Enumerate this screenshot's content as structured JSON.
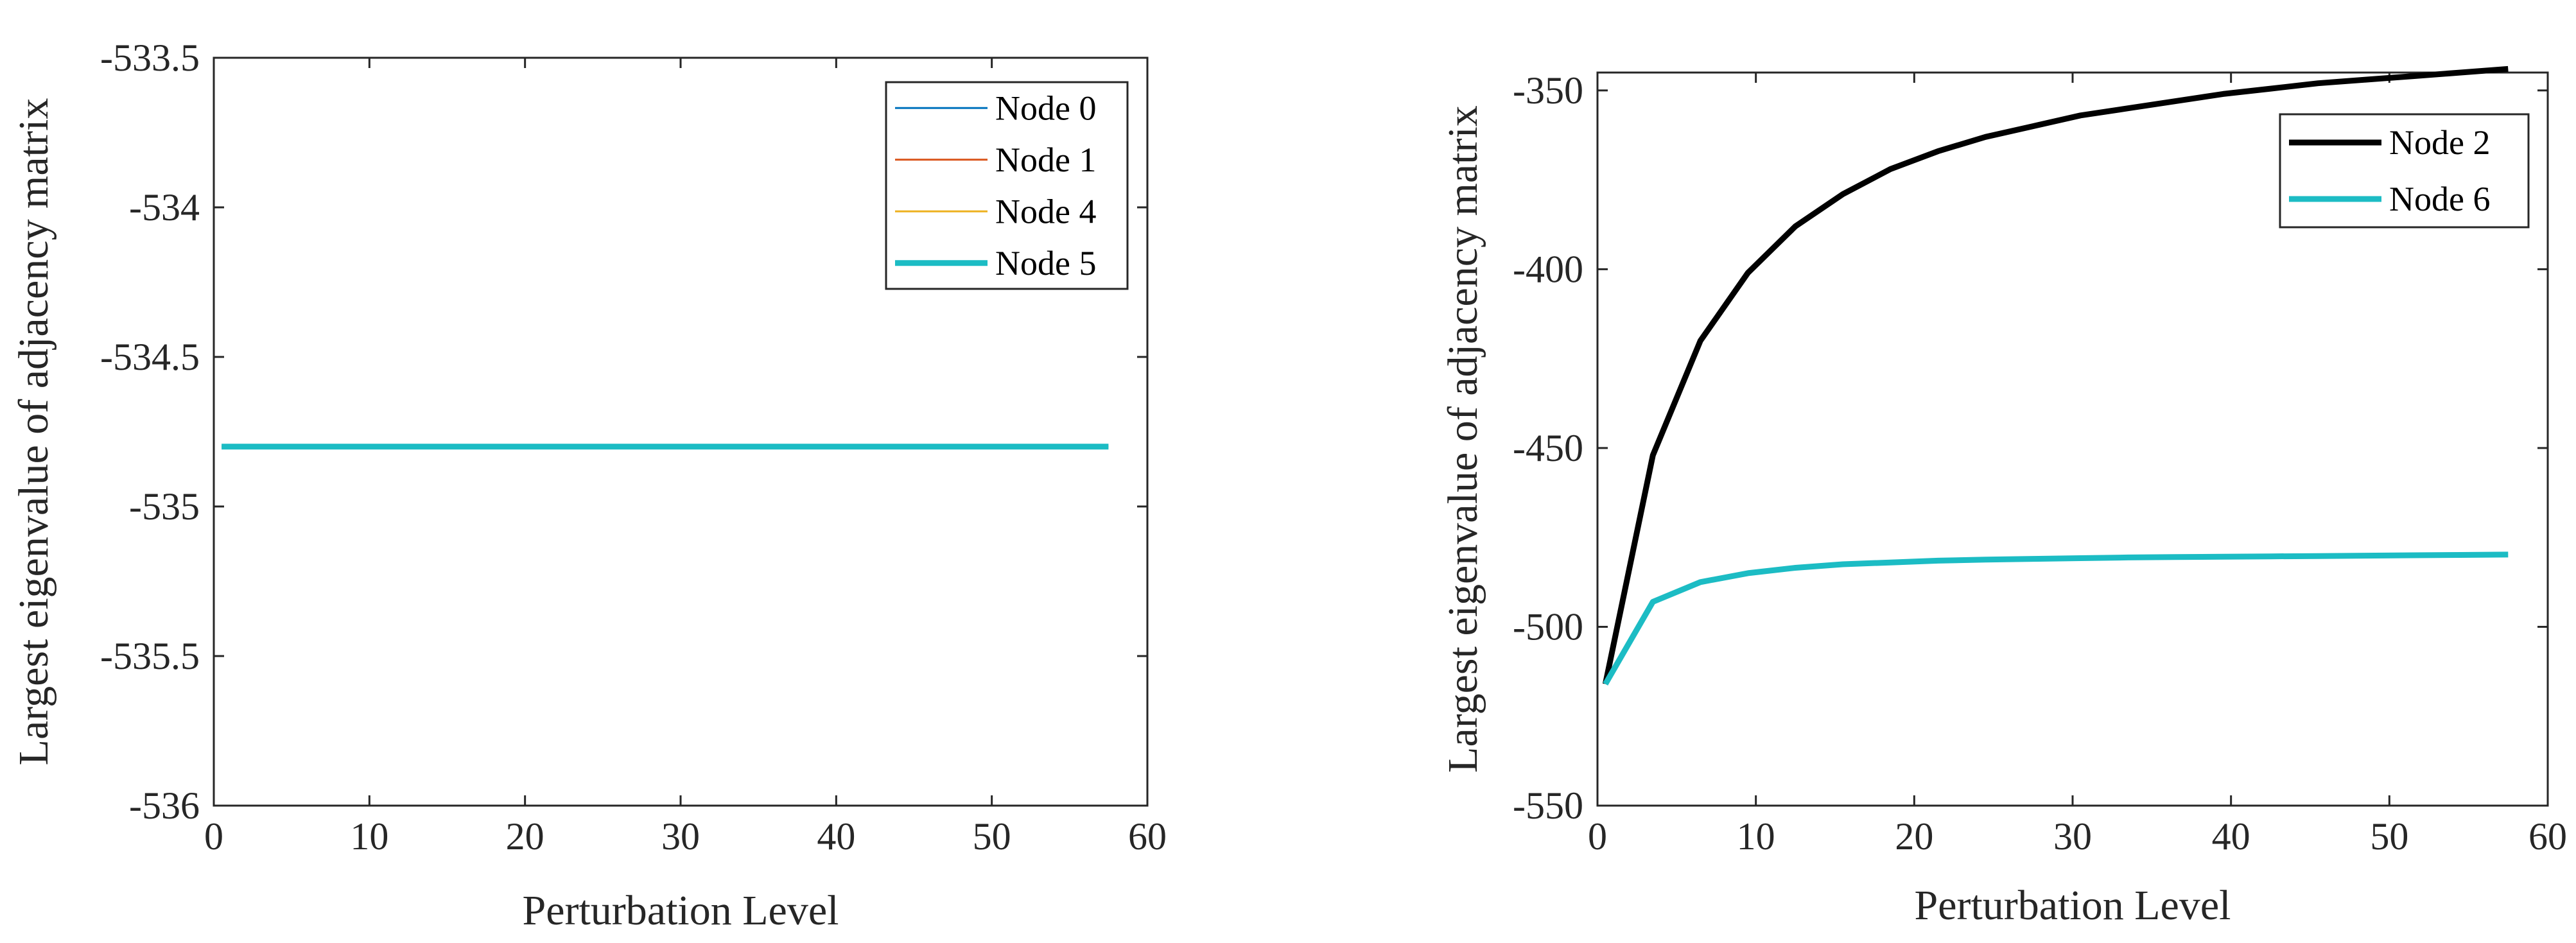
{
  "chart_data": [
    {
      "type": "line",
      "title": "",
      "xlabel": "Perturbation Level",
      "ylabel": "Largest eigenvalue of adjacency matrix",
      "xlim": [
        0,
        60
      ],
      "ylim": [
        -536,
        -533.5
      ],
      "xticks": [
        0,
        10,
        20,
        30,
        40,
        50,
        60
      ],
      "xtick_labels": [
        "0",
        "10",
        "20",
        "30",
        "40",
        "50",
        "60"
      ],
      "yticks": [
        -536,
        -535.5,
        -535,
        -534.5,
        -534,
        -533.5
      ],
      "ytick_labels": [
        "-536",
        "-535.5",
        "-535",
        "-534.5",
        "-534",
        "-533.5"
      ],
      "grid": false,
      "legend_position": "top-right",
      "series": [
        {
          "name": "Node 0",
          "color": "#0072BD",
          "width": "thin",
          "x": [
            0.5,
            57.5
          ],
          "y": [
            -534.8,
            -534.8
          ]
        },
        {
          "name": "Node 1",
          "color": "#D95319",
          "width": "thin",
          "x": [
            0.5,
            57.5
          ],
          "y": [
            -534.8,
            -534.8
          ]
        },
        {
          "name": "Node 4",
          "color": "#EDB120",
          "width": "thin",
          "x": [
            0.5,
            57.5
          ],
          "y": [
            -534.8,
            -534.8
          ]
        },
        {
          "name": "Node 5",
          "color": "#1CBCC4",
          "width": "thick",
          "x": [
            0.5,
            57.5
          ],
          "y": [
            -534.8,
            -534.8
          ]
        }
      ]
    },
    {
      "type": "line",
      "title": "",
      "xlabel": "Perturbation Level",
      "ylabel": "Largest eigenvalue of adjacency matrix",
      "xlim": [
        0,
        60
      ],
      "ylim": [
        -550,
        -345
      ],
      "xticks": [
        0,
        10,
        20,
        30,
        40,
        50,
        60
      ],
      "xtick_labels": [
        "0",
        "10",
        "20",
        "30",
        "40",
        "50",
        "60"
      ],
      "yticks": [
        -550,
        -500,
        -450,
        -400,
        -350
      ],
      "ytick_labels": [
        "-550",
        "-500",
        "-450",
        "-400",
        "-350"
      ],
      "grid": false,
      "legend_position": "top-right",
      "series": [
        {
          "name": "Node 2",
          "color": "#000000",
          "width": "thick",
          "x": [
            0.5,
            3.5,
            6.5,
            9.5,
            12.5,
            15.5,
            18.5,
            21.5,
            24.5,
            27.5,
            30.5,
            33.5,
            36.5,
            39.5,
            42.5,
            45.5,
            48.5,
            51.5,
            54.5,
            57.5
          ],
          "y": [
            -516,
            -452,
            -420,
            -401,
            -388,
            -379,
            -372,
            -367,
            -363,
            -360,
            -357,
            -355,
            -353,
            -351,
            -349.5,
            -348,
            -347,
            -346,
            -345,
            -344
          ]
        },
        {
          "name": "Node 6",
          "color": "#1CBCC4",
          "width": "thick",
          "x": [
            0.5,
            3.5,
            6.5,
            9.5,
            12.5,
            15.5,
            18.5,
            21.5,
            24.5,
            27.5,
            30.5,
            33.5,
            36.5,
            39.5,
            42.5,
            45.5,
            48.5,
            51.5,
            54.5,
            57.5
          ],
          "y": [
            -516,
            -493,
            -487.5,
            -485,
            -483.5,
            -482.5,
            -482,
            -481.5,
            -481.2,
            -481,
            -480.8,
            -480.6,
            -480.5,
            -480.4,
            -480.3,
            -480.2,
            -480.1,
            -480,
            -479.9,
            -479.8
          ]
        }
      ]
    }
  ]
}
